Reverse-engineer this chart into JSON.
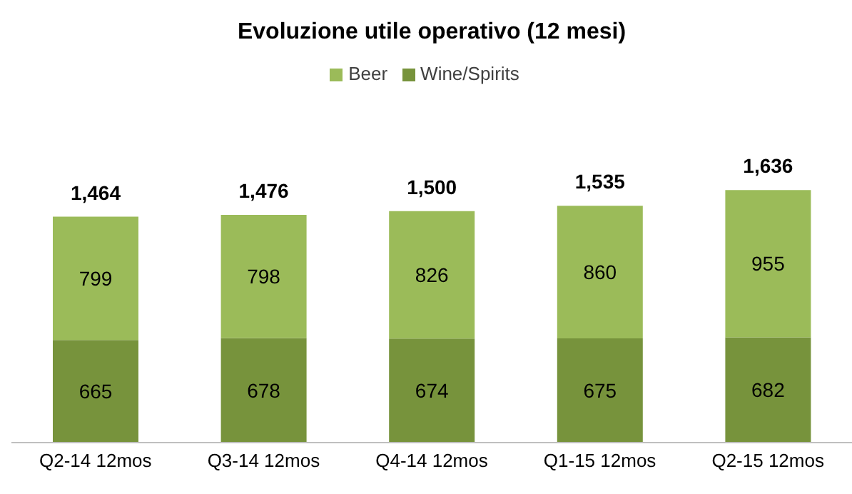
{
  "chart_data": {
    "type": "bar",
    "title": "Evoluzione utile operativo (12 mesi)",
    "categories": [
      "Q2-14 12mos",
      "Q3-14 12mos",
      "Q4-14 12mos",
      "Q1-15 12mos",
      "Q2-15 12mos"
    ],
    "stacked": true,
    "data_labels": true,
    "legend": "top",
    "grid": false,
    "series": [
      {
        "name": "Wine/Spirits",
        "color": "#77933c",
        "values": [
          665,
          678,
          674,
          675,
          682
        ]
      },
      {
        "name": "Beer",
        "color": "#9bbb59",
        "values": [
          799,
          798,
          826,
          860,
          955
        ]
      }
    ],
    "totals": [
      "1,464",
      "1,476",
      "1,500",
      "1,535",
      "1,636"
    ]
  }
}
